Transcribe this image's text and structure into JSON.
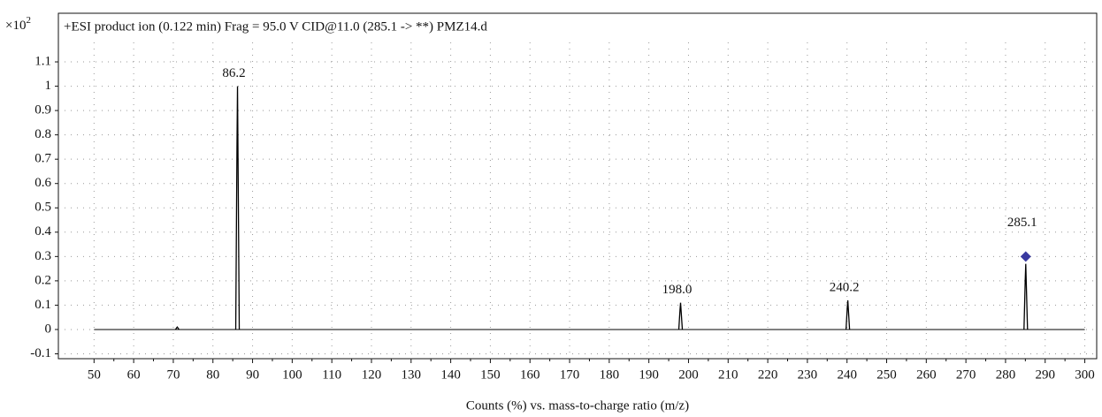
{
  "chart_data": {
    "type": "spectrum",
    "title": "+ESI product ion (0.122 min) Frag = 95.0 V CID@11.0 (285.1 -> **) PMZ14.d",
    "y_scale_label": {
      "base": "×10",
      "exponent": "2"
    },
    "xlabel": "Counts (%) vs. mass-to-charge ratio (m/z)",
    "x": [
      71,
      86.2,
      198.0,
      240.2,
      285.1
    ],
    "values": [
      0.01,
      1.0,
      0.11,
      0.12,
      0.27
    ],
    "x_labels": [
      null,
      "86.2",
      "198.0",
      "240.2",
      "285.1"
    ],
    "color": "#000000",
    "precursor": {
      "x": 285.1,
      "y": 0.3,
      "color": "#3a3aa0"
    },
    "xlim": [
      41,
      303
    ],
    "ylim": [
      -0.12,
      1.18
    ],
    "xticks": [
      50,
      60,
      70,
      80,
      90,
      100,
      110,
      120,
      130,
      140,
      150,
      160,
      170,
      180,
      190,
      200,
      210,
      220,
      230,
      240,
      250,
      260,
      270,
      280,
      290,
      300
    ],
    "yticks": [
      -0.1,
      0,
      0.1,
      0.2,
      0.3,
      0.4,
      0.5,
      0.6,
      0.7,
      0.8,
      0.9,
      1,
      1.1
    ],
    "grid": true
  }
}
